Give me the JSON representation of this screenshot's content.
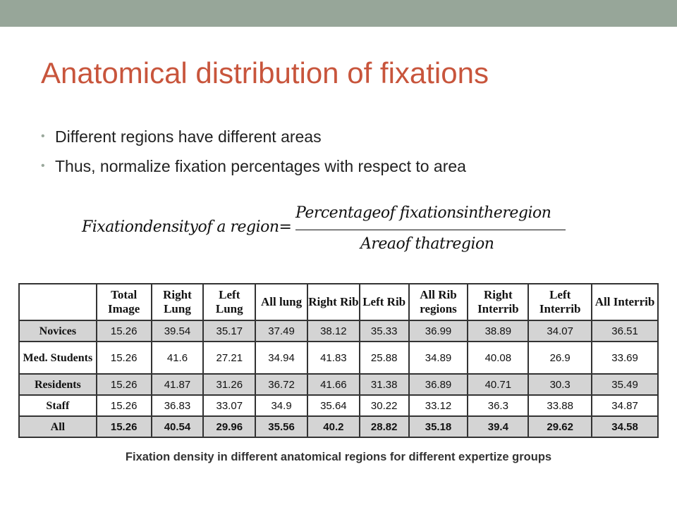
{
  "slide": {
    "title": "Anatomical distribution of fixations",
    "bullets": [
      "Different regions have different areas",
      "Thus, normalize fixation percentages with respect to area"
    ],
    "formula": {
      "lhs": "Fixationdensityof a region=",
      "numerator": "Percentageof fixationsintheregion",
      "denominator": "Areaof thatregion"
    },
    "table": {
      "headers": [
        "",
        "Total Image",
        "Right Lung",
        "Left Lung",
        "All lung",
        "Right Rib",
        "Left Rib",
        "All Rib regions",
        "Right Interrib",
        "Left Interrib",
        "All Interrib"
      ],
      "rows": [
        {
          "label": "Novices",
          "values": [
            "15.26",
            "39.54",
            "35.17",
            "37.49",
            "38.12",
            "35.33",
            "36.99",
            "38.89",
            "34.07",
            "36.51"
          ]
        },
        {
          "label": "Med. Students",
          "values": [
            "15.26",
            "41.6",
            "27.21",
            "34.94",
            "41.83",
            "25.88",
            "34.89",
            "40.08",
            "26.9",
            "33.69"
          ]
        },
        {
          "label": "Residents",
          "values": [
            "15.26",
            "41.87",
            "31.26",
            "36.72",
            "41.66",
            "31.38",
            "36.89",
            "40.71",
            "30.3",
            "35.49"
          ]
        },
        {
          "label": "Staff",
          "values": [
            "15.26",
            "36.83",
            "33.07",
            "34.9",
            "35.64",
            "30.22",
            "33.12",
            "36.3",
            "33.88",
            "34.87"
          ]
        },
        {
          "label": "All",
          "values": [
            "15.26",
            "40.54",
            "29.96",
            "35.56",
            "40.2",
            "28.82",
            "35.18",
            "39.4",
            "29.62",
            "34.58"
          ]
        }
      ]
    },
    "caption": "Fixation density in different anatomical regions for different expertize groups",
    "colors": {
      "top_bar": "#97A699",
      "title": "#C8553C",
      "row_shade": "#D4D4D4"
    }
  }
}
